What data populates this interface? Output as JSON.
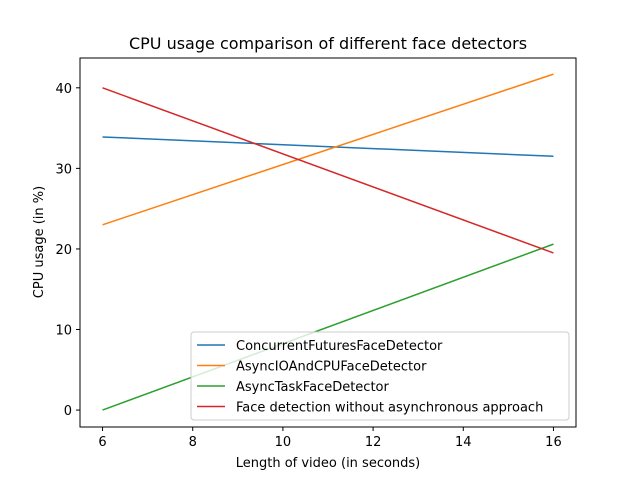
{
  "chart_data": {
    "type": "line",
    "title": "CPU usage comparison of different face detectors",
    "xlabel": "Length of video (in seconds)",
    "ylabel": "CPU usage (in %)",
    "xlim": [
      5.5,
      16.5
    ],
    "ylim": [
      -2.1,
      43.7
    ],
    "xticks": [
      6,
      8,
      10,
      12,
      14,
      16
    ],
    "yticks": [
      0,
      10,
      20,
      30,
      40
    ],
    "grid": false,
    "legend_position": "lower-right",
    "series": [
      {
        "name": "ConcurrentFuturesFaceDetector",
        "color": "#1f77b4",
        "x": [
          6,
          16
        ],
        "y": [
          33.9,
          31.5
        ]
      },
      {
        "name": "AsyncIOAndCPUFaceDetector",
        "color": "#ff7f0e",
        "x": [
          6,
          16
        ],
        "y": [
          23.0,
          41.7
        ]
      },
      {
        "name": "AsyncTaskFaceDetector",
        "color": "#2ca02c",
        "x": [
          6,
          16
        ],
        "y": [
          0.0,
          20.6
        ]
      },
      {
        "name": "Face detection without asynchronous approach",
        "color": "#d62728",
        "x": [
          6,
          16
        ],
        "y": [
          40.0,
          19.5
        ]
      }
    ]
  }
}
